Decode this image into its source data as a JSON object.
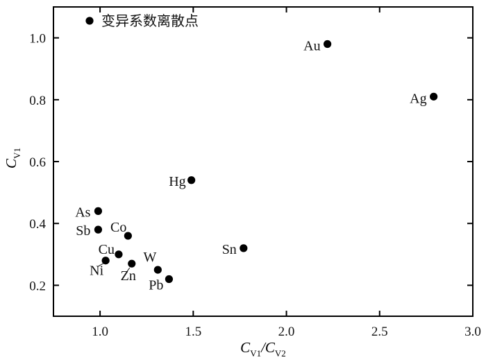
{
  "chart_data": {
    "type": "scatter",
    "xlabel": {
      "main": "C",
      "sub1": "V1",
      "slash": "/C",
      "sub2": "V2"
    },
    "ylabel": {
      "main": "C",
      "sub": "V1"
    },
    "xlim": [
      0.75,
      3.0
    ],
    "ylim": [
      0.1,
      1.1
    ],
    "x_ticks": [
      1.0,
      1.5,
      2.0,
      2.5,
      3.0
    ],
    "x_tick_labels": [
      "1.0",
      "1.5",
      "2.0",
      "2.5",
      "3.0"
    ],
    "y_ticks": [
      0.2,
      0.4,
      0.6,
      0.8,
      1.0
    ],
    "y_tick_labels": [
      "0.2",
      "0.4",
      "0.6",
      "0.8",
      "1.0"
    ],
    "grid": false,
    "legend": {
      "label": "变异系数离散点",
      "position": "top-left"
    },
    "series": [
      {
        "points": [
          {
            "label": "Au",
            "x": 2.22,
            "y": 0.98
          },
          {
            "label": "Ag",
            "x": 2.79,
            "y": 0.81
          },
          {
            "label": "Hg",
            "x": 1.49,
            "y": 0.54
          },
          {
            "label": "Sn",
            "x": 1.77,
            "y": 0.32
          },
          {
            "label": "As",
            "x": 0.99,
            "y": 0.44
          },
          {
            "label": "Sb",
            "x": 0.99,
            "y": 0.38
          },
          {
            "label": "Co",
            "x": 1.15,
            "y": 0.36
          },
          {
            "label": "Cu",
            "x": 1.1,
            "y": 0.3
          },
          {
            "label": "Ni",
            "x": 1.03,
            "y": 0.28
          },
          {
            "label": "Zn",
            "x": 1.17,
            "y": 0.27
          },
          {
            "label": "W",
            "x": 1.31,
            "y": 0.25
          },
          {
            "label": "Pb",
            "x": 1.37,
            "y": 0.22
          }
        ]
      }
    ],
    "marker_color": "#000000"
  }
}
